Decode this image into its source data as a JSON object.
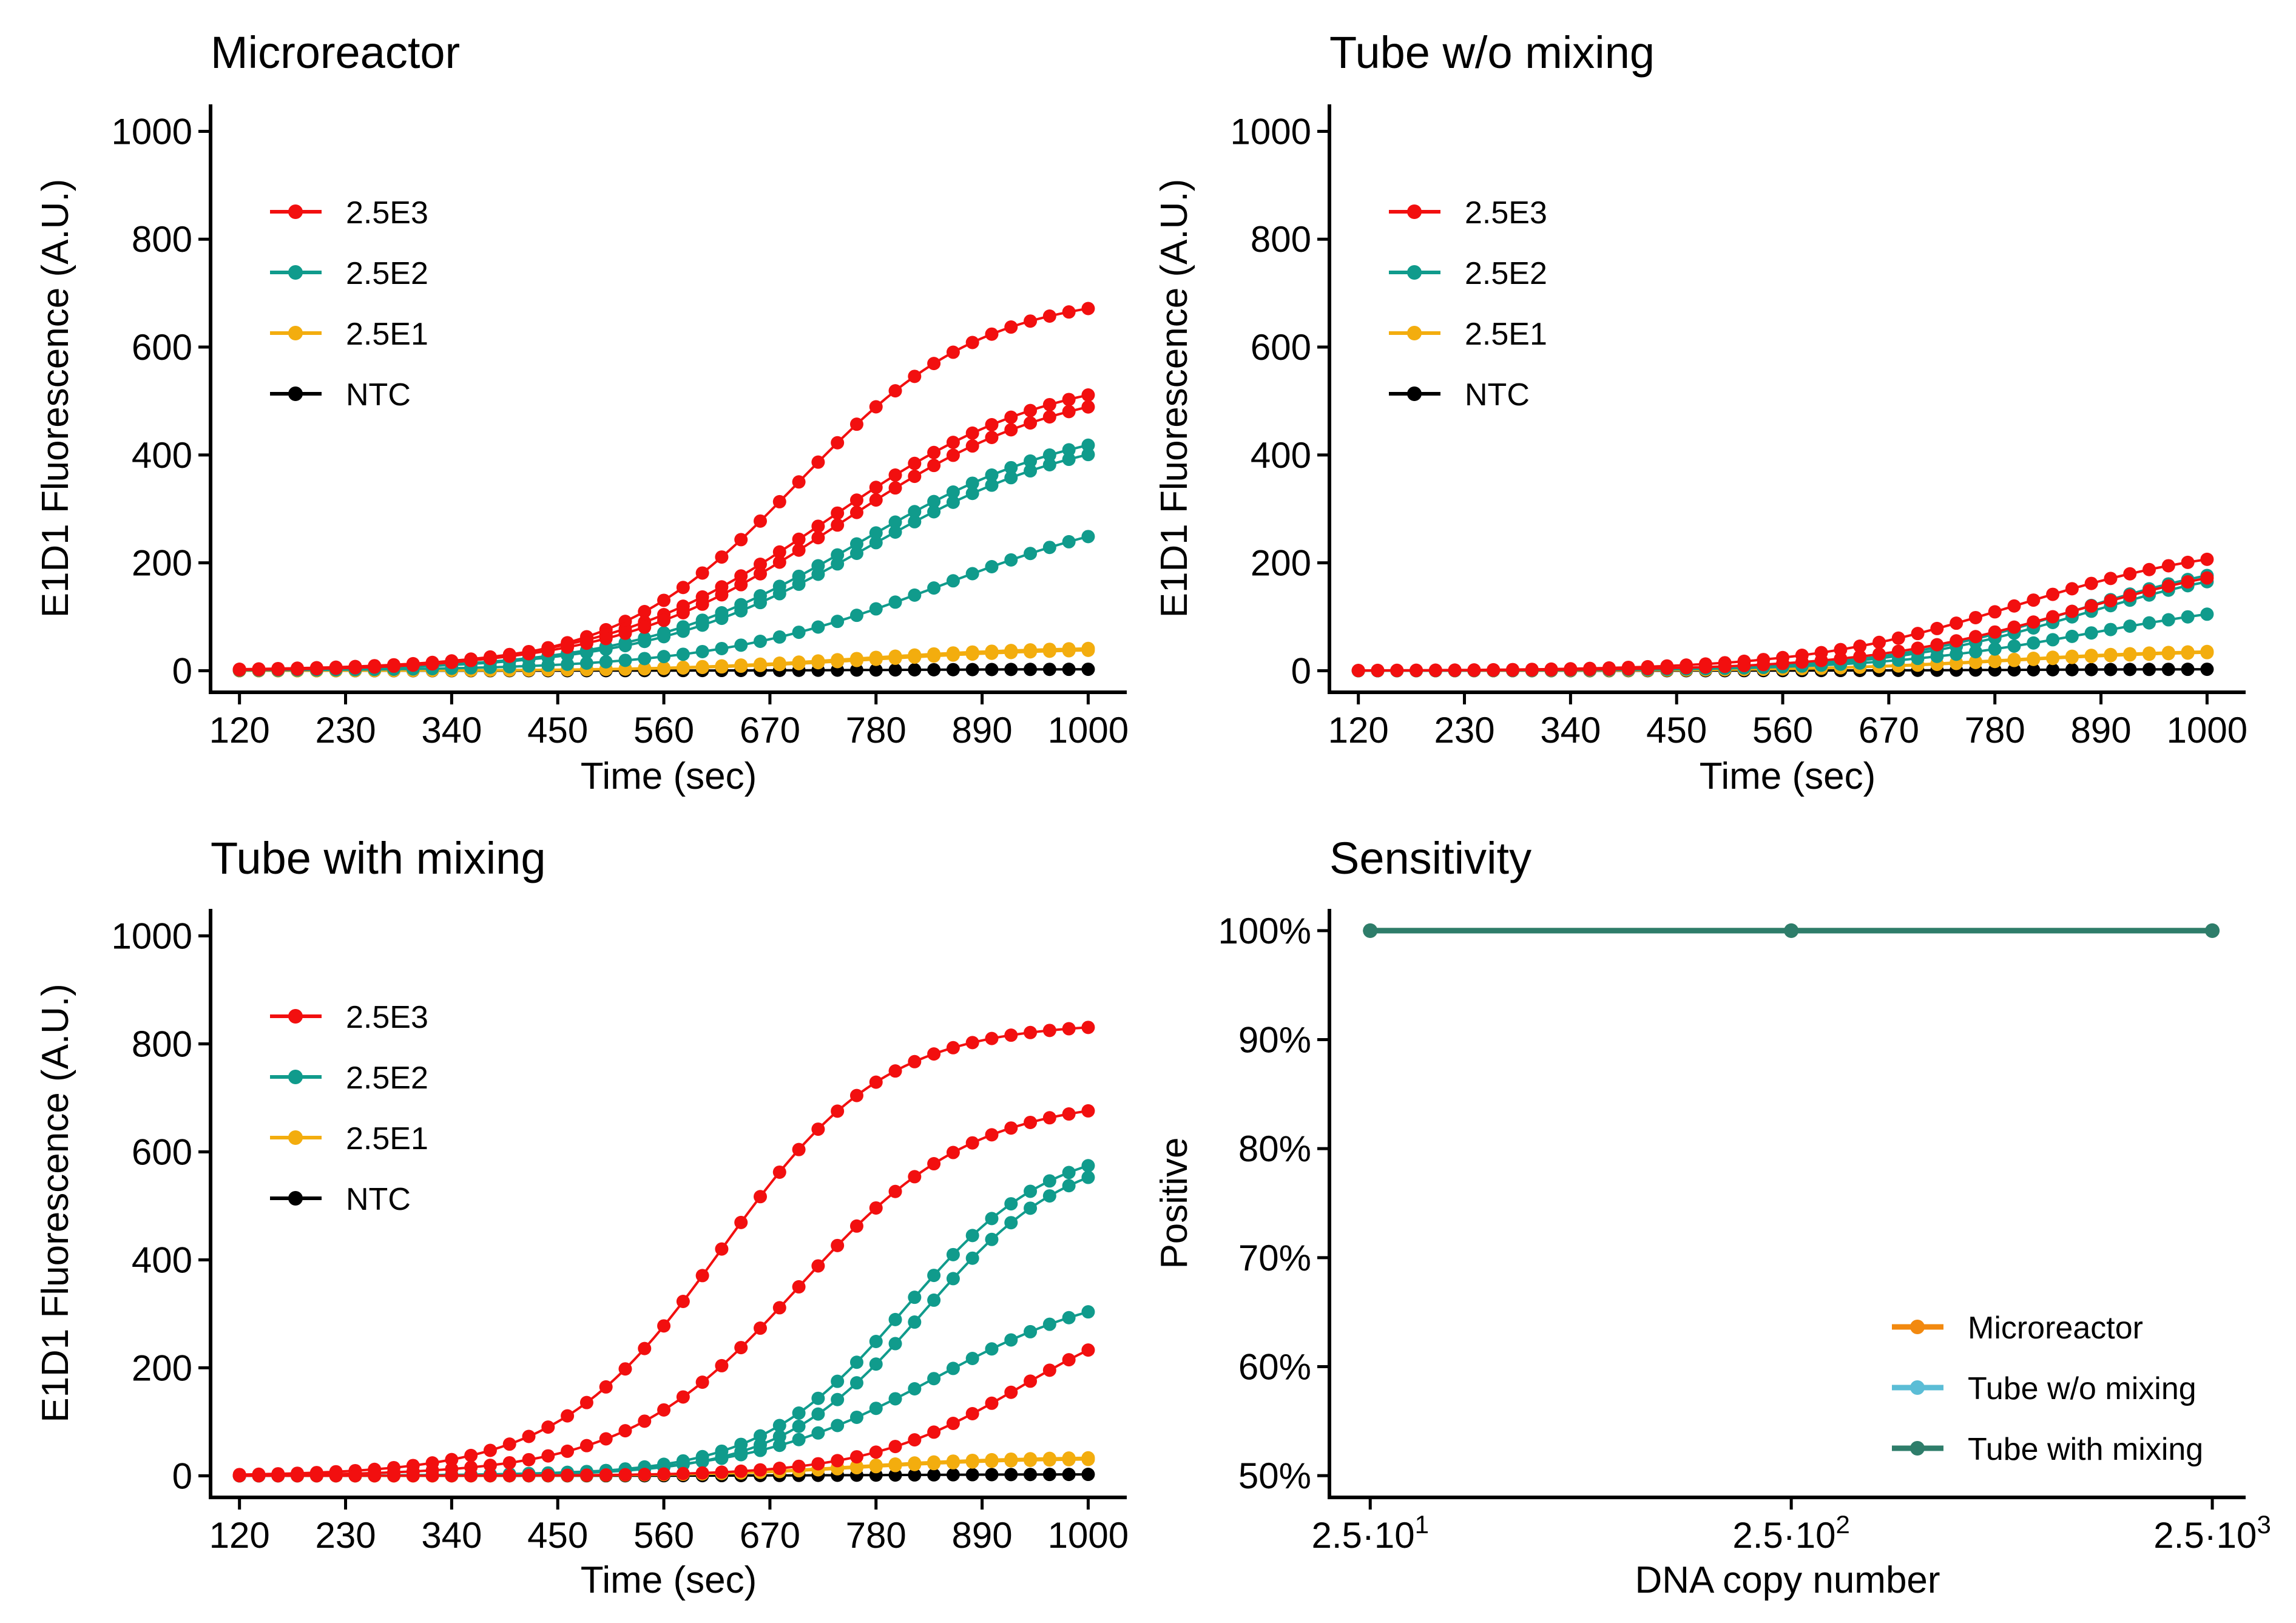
{
  "colors": {
    "red": "#f20f0f",
    "teal": "#109b8c",
    "amber": "#f3ad0e",
    "black": "#000000",
    "microreactor": "#f2890f",
    "tube_wo_mixing": "#5bbdd6",
    "tube_with_mixing": "#2e7d6a"
  },
  "chart_data": [
    {
      "id": "microreactor",
      "type": "scatter",
      "title": "Microreactor",
      "xlabel": "Time (sec)",
      "ylabel": "E1D1 Fluorescence (A.U.)",
      "xlim": [
        90,
        1040
      ],
      "ylim": [
        -40,
        1050
      ],
      "xticks": [
        120,
        230,
        340,
        450,
        560,
        670,
        780,
        890,
        1000
      ],
      "yticks": [
        0,
        200,
        400,
        600,
        800,
        1000
      ],
      "legend": [
        "2.5E3",
        "2.5E2",
        "2.5E1",
        "NTC"
      ],
      "legend_position": "top-left",
      "x_start": 120,
      "x_end": 1000,
      "x_step": 20,
      "curves": [
        {
          "group": "2.5E3",
          "max": 700,
          "mid": 700,
          "scale": 95
        },
        {
          "group": "2.5E3",
          "max": 560,
          "mid": 730,
          "scale": 115
        },
        {
          "group": "2.5E3",
          "max": 540,
          "mid": 740,
          "scale": 115
        },
        {
          "group": "2.5E2",
          "max": 470,
          "mid": 760,
          "scale": 115
        },
        {
          "group": "2.5E2",
          "max": 455,
          "mid": 770,
          "scale": 115
        },
        {
          "group": "2.5E2",
          "max": 320,
          "mid": 850,
          "scale": 120
        },
        {
          "group": "2.5E1",
          "max": 45,
          "mid": 760,
          "scale": 100
        },
        {
          "group": "2.5E1",
          "max": 42,
          "mid": 780,
          "scale": 100
        },
        {
          "group": "NTC",
          "max": 3,
          "mid": 800,
          "scale": 100
        }
      ]
    },
    {
      "id": "tube-wo-mixing",
      "type": "scatter",
      "title": "Tube w/o mixing",
      "xlabel": "Time (sec)",
      "ylabel": "E1D1 Fluorescence (A.U.)",
      "xlim": [
        90,
        1040
      ],
      "ylim": [
        -40,
        1050
      ],
      "xticks": [
        120,
        230,
        340,
        450,
        560,
        670,
        780,
        890,
        1000
      ],
      "yticks": [
        0,
        200,
        400,
        600,
        800,
        1000
      ],
      "legend": [
        "2.5E3",
        "2.5E2",
        "2.5E1",
        "NTC"
      ],
      "legend_position": "top-left",
      "x_start": 120,
      "x_end": 1000,
      "x_step": 20,
      "curves": [
        {
          "group": "2.5E3",
          "max": 240,
          "mid": 800,
          "scale": 110
        },
        {
          "group": "2.5E3",
          "max": 220,
          "mid": 860,
          "scale": 110
        },
        {
          "group": "2.5E2",
          "max": 220,
          "mid": 860,
          "scale": 100
        },
        {
          "group": "2.5E2",
          "max": 210,
          "mid": 870,
          "scale": 100
        },
        {
          "group": "2.5E2",
          "max": 140,
          "mid": 880,
          "scale": 110
        },
        {
          "group": "2.5E1",
          "max": 40,
          "mid": 790,
          "scale": 100
        },
        {
          "group": "2.5E1",
          "max": 38,
          "mid": 800,
          "scale": 100
        },
        {
          "group": "NTC",
          "max": 3,
          "mid": 800,
          "scale": 100
        }
      ]
    },
    {
      "id": "tube-with-mixing",
      "type": "scatter",
      "title": "Tube with mixing",
      "xlabel": "Time (sec)",
      "ylabel": "E1D1 Fluorescence (A.U.)",
      "xlim": [
        90,
        1040
      ],
      "ylim": [
        -40,
        1050
      ],
      "xticks": [
        120,
        230,
        340,
        450,
        560,
        670,
        780,
        890,
        1000
      ],
      "yticks": [
        0,
        200,
        400,
        600,
        800,
        1000
      ],
      "legend": [
        "2.5E3",
        "2.5E2",
        "2.5E1",
        "NTC"
      ],
      "legend_position": "top-left",
      "x_start": 120,
      "x_end": 1000,
      "x_step": 20,
      "curves": [
        {
          "group": "2.5E3",
          "max": 840,
          "mid": 620,
          "scale": 85
        },
        {
          "group": "2.5E3",
          "max": 700,
          "mid": 700,
          "scale": 90
        },
        {
          "group": "2.5E3",
          "max": 330,
          "mid": 930,
          "scale": 80
        },
        {
          "group": "2.5E2",
          "max": 620,
          "mid": 810,
          "scale": 75
        },
        {
          "group": "2.5E2",
          "max": 610,
          "mid": 830,
          "scale": 75
        },
        {
          "group": "2.5E2",
          "max": 360,
          "mid": 840,
          "scale": 95
        },
        {
          "group": "2.5E1",
          "max": 35,
          "mid": 760,
          "scale": 80
        },
        {
          "group": "2.5E1",
          "max": 32,
          "mid": 770,
          "scale": 80
        },
        {
          "group": "NTC",
          "max": 3,
          "mid": 800,
          "scale": 100
        }
      ]
    },
    {
      "id": "sensitivity",
      "type": "line",
      "title": "Sensitivity",
      "xlabel": "DNA copy number",
      "ylabel": "Positive",
      "x_scale": "log10",
      "xlim": [
        20,
        3000
      ],
      "ylim": [
        48,
        102
      ],
      "x": [
        25,
        250,
        2500
      ],
      "xtick_labels": [
        {
          "base": "2.5·10",
          "exp": "1"
        },
        {
          "base": "2.5·10",
          "exp": "2"
        },
        {
          "base": "2.5·10",
          "exp": "3"
        }
      ],
      "yticks": [
        50,
        60,
        70,
        80,
        90,
        100
      ],
      "ytick_labels": [
        "50%",
        "60%",
        "70%",
        "80%",
        "90%",
        "100%"
      ],
      "legend_position": "bottom-right",
      "series": [
        {
          "name": "Microreactor",
          "color_key": "microreactor",
          "values": [
            100,
            100,
            100
          ]
        },
        {
          "name": "Tube w/o mixing",
          "color_key": "tube_wo_mixing",
          "values": [
            100,
            100,
            100
          ]
        },
        {
          "name": "Tube with mixing",
          "color_key": "tube_with_mixing",
          "values": [
            100,
            100,
            100
          ]
        }
      ]
    }
  ]
}
